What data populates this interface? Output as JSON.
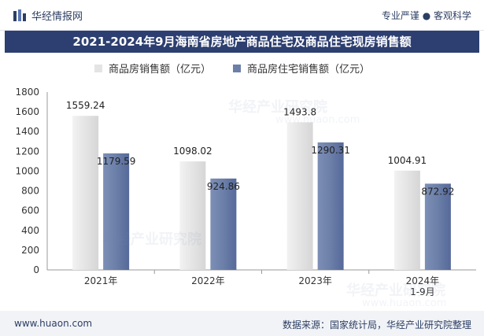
{
  "header": {
    "brand": "华经情报网",
    "slogan": "专业严谨 ● 客观科学"
  },
  "watermark": {
    "text": "华经产业研究院",
    "url": "www.huaon.com"
  },
  "colors": {
    "bar_series_1": "#e4e4e4",
    "bar_series_2": "#6b7fa8",
    "title_bg": "#2d3f70",
    "brand": "#2c3e63"
  },
  "chart_data": {
    "type": "bar",
    "title": "2021-2024年9月海南省房地产商品住宅及商品住宅现房销售额",
    "categories": [
      "2021年",
      "2022年",
      "2023年",
      "2024年\n1-9月"
    ],
    "series": [
      {
        "name": "商品房销售额（亿元）",
        "values": [
          1559.24,
          1098.02,
          1493.8,
          1004.91
        ],
        "labels": [
          "1559.24",
          "1098.02",
          "1493.8",
          "1004.91"
        ]
      },
      {
        "name": "商品房住宅销售额（亿元）",
        "values": [
          1179.59,
          924.86,
          1290.31,
          872.92
        ],
        "labels": [
          "1179.59",
          "924.86",
          "1290.31",
          "872.92"
        ]
      }
    ],
    "yticks": [
      0,
      200,
      400,
      600,
      800,
      1000,
      1200,
      1400,
      1600,
      1800
    ],
    "ylim": [
      0,
      1800
    ],
    "xlabel": "",
    "ylabel": "",
    "legend_position": "top"
  },
  "footer": {
    "url": "www.huaon.com",
    "source": "数据来源：国家统计局，华经产业研究院整理"
  }
}
